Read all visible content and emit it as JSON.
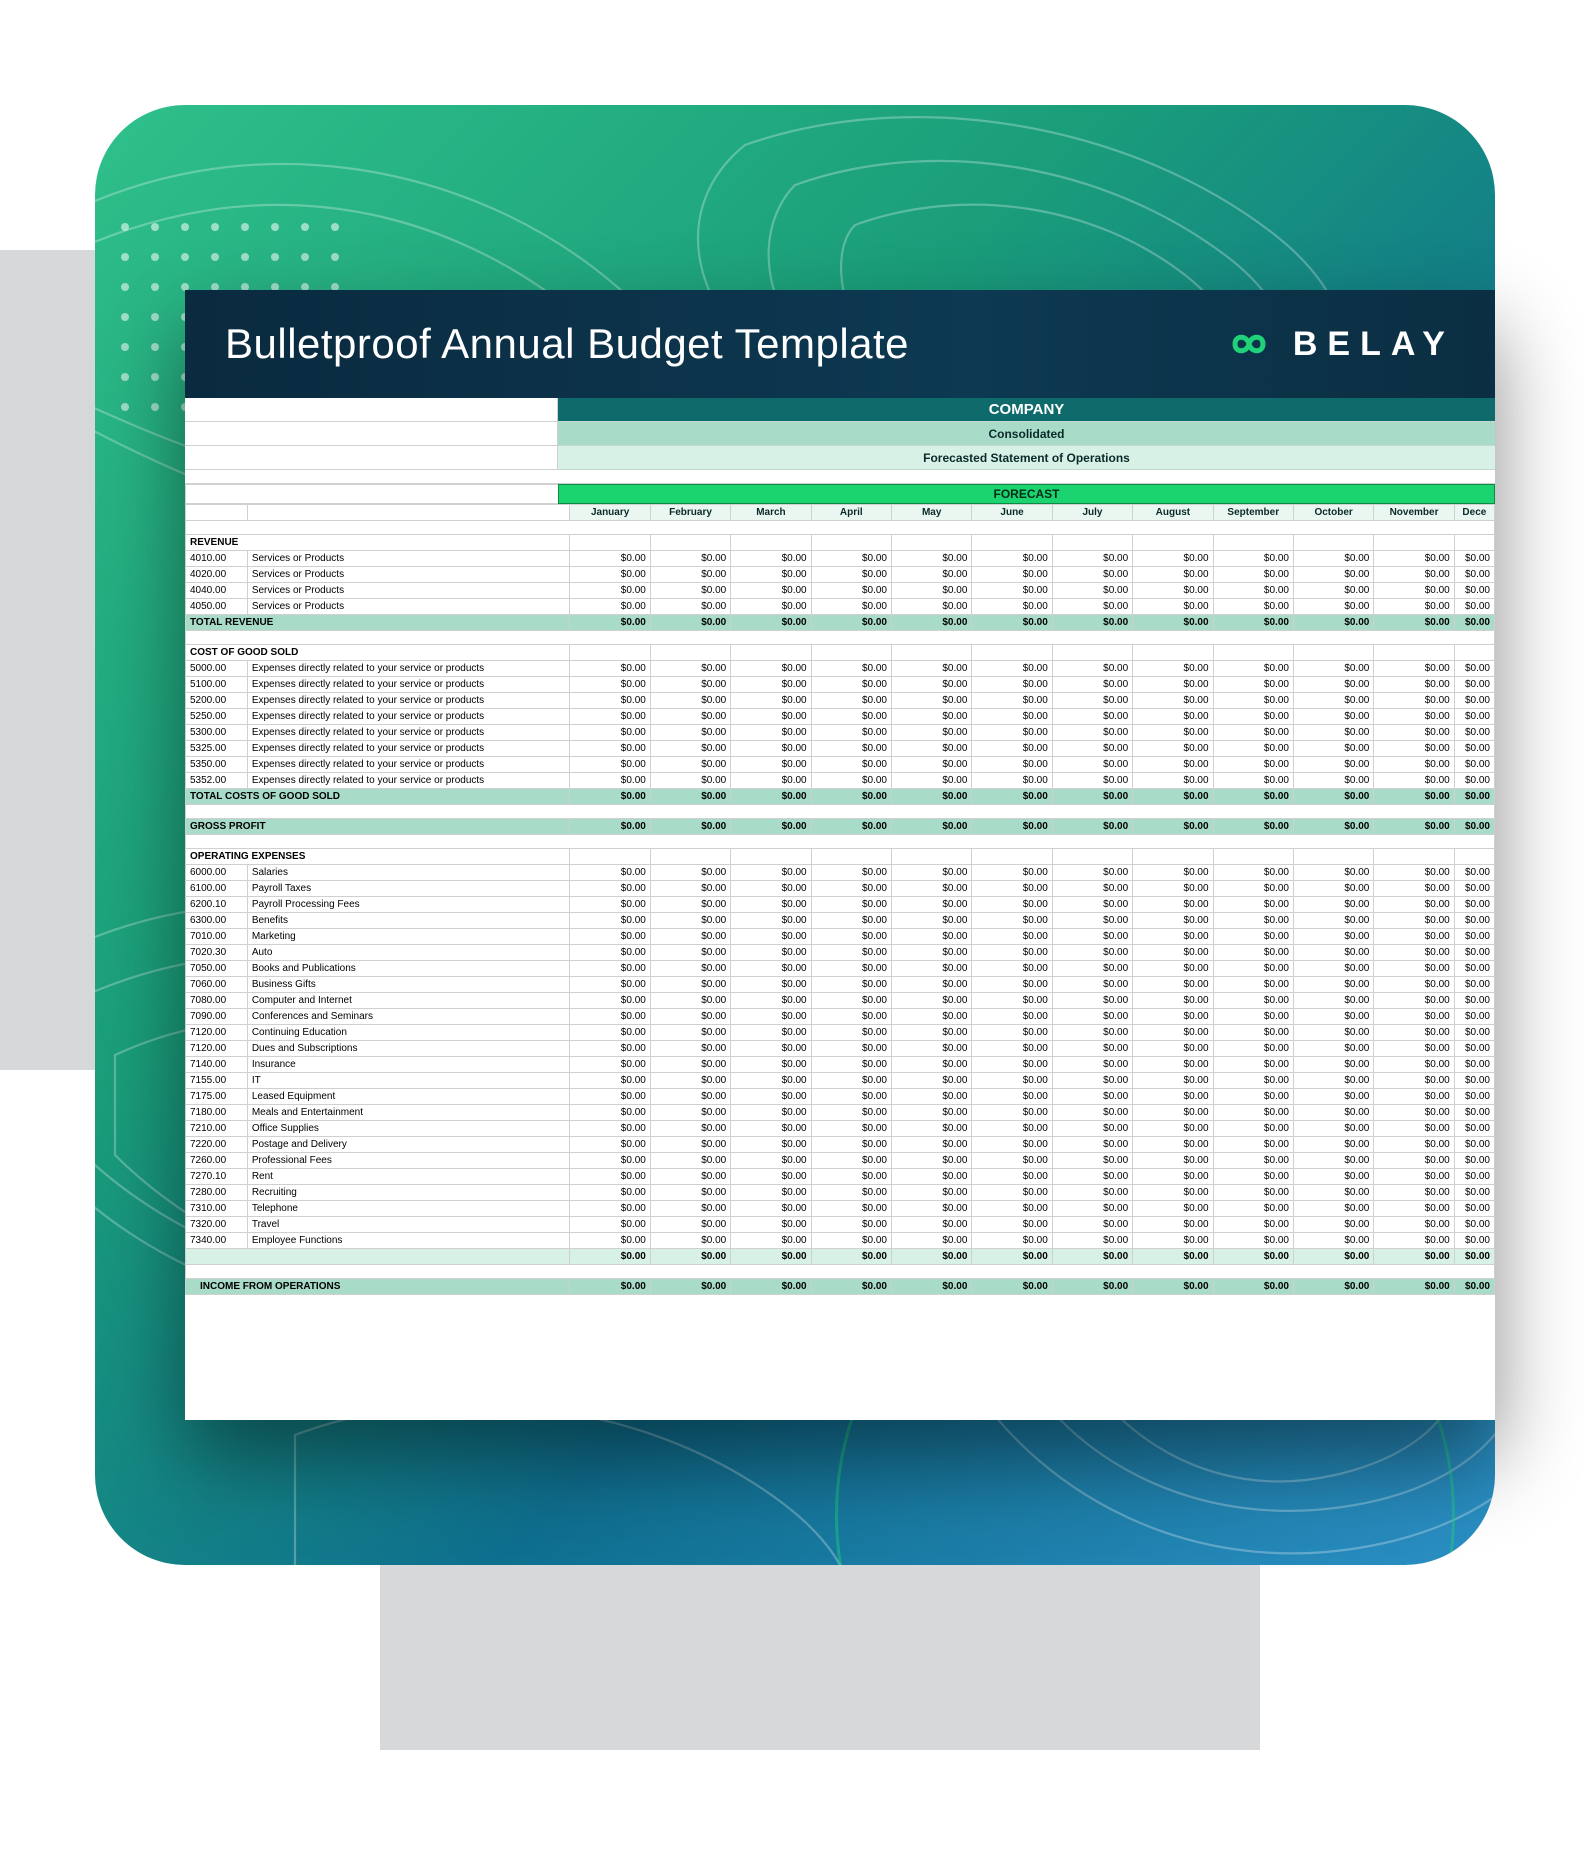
{
  "colors": {
    "title_bg_from": "#0a2a3f",
    "title_bg_to": "#0b2e42",
    "card_grad_1": "#2fc08a",
    "card_grad_2": "#1a9e7a",
    "card_grad_3": "#0f6f8f",
    "card_grad_4": "#2b8fc4",
    "forecast_bar": "#1bd36f",
    "total_green": "#a8dcc9",
    "total_light": "#d8f1e6",
    "company_name_bg": "#0f6a6c",
    "grid_border": "#d0d0d0",
    "gray_block": "#d7d8d9",
    "logo_ring": "#1fd27a"
  },
  "title": "Bulletproof Annual Budget Template",
  "brand": "BELAY",
  "header": {
    "company": "COMPANY",
    "line2": "Consolidated",
    "line3": "Forecasted Statement of Operations",
    "forecast_label": "FORECAST"
  },
  "months": [
    "January",
    "February",
    "March",
    "April",
    "May",
    "June",
    "July",
    "August",
    "September",
    "October",
    "November",
    "Dece"
  ],
  "zero": "$0.00",
  "sections": [
    {
      "name": "REVENUE",
      "rows": [
        {
          "code": "4010.00",
          "desc": "Services or Products"
        },
        {
          "code": "4020.00",
          "desc": "Services or Products"
        },
        {
          "code": "4040.00",
          "desc": "Services or Products"
        },
        {
          "code": "4050.00",
          "desc": "Services or Products"
        }
      ],
      "total_label": "TOTAL REVENUE",
      "total_style": "green"
    },
    {
      "name": "COST OF GOOD SOLD",
      "rows": [
        {
          "code": "5000.00",
          "desc": "Expenses directly related to your service or products"
        },
        {
          "code": "5100.00",
          "desc": "Expenses directly related to your service or products"
        },
        {
          "code": "5200.00",
          "desc": "Expenses directly related to your service or products"
        },
        {
          "code": "5250.00",
          "desc": "Expenses directly related to your service or products"
        },
        {
          "code": "5300.00",
          "desc": "Expenses directly related to your service or products"
        },
        {
          "code": "5325.00",
          "desc": "Expenses directly related to your service or products"
        },
        {
          "code": "5350.00",
          "desc": "Expenses directly related to your service or products"
        },
        {
          "code": "5352.00",
          "desc": "Expenses directly related to your service or products"
        }
      ],
      "total_label": "TOTAL COSTS OF GOOD SOLD",
      "total_style": "green"
    }
  ],
  "gross_profit_label": "GROSS PROFIT",
  "op_ex": {
    "name": "OPERATING EXPENSES",
    "rows": [
      {
        "code": "6000.00",
        "desc": "Salaries"
      },
      {
        "code": "6100.00",
        "desc": "Payroll Taxes"
      },
      {
        "code": "6200.10",
        "desc": "Payroll Processing Fees"
      },
      {
        "code": "6300.00",
        "desc": "Benefits"
      },
      {
        "code": "7010.00",
        "desc": "Marketing"
      },
      {
        "code": "7020.30",
        "desc": "Auto"
      },
      {
        "code": "7050.00",
        "desc": "Books and Publications"
      },
      {
        "code": "7060.00",
        "desc": "Business Gifts"
      },
      {
        "code": "7080.00",
        "desc": "Computer and Internet"
      },
      {
        "code": "7090.00",
        "desc": "Conferences and Seminars"
      },
      {
        "code": "7120.00",
        "desc": "Continuing Education"
      },
      {
        "code": "7120.00",
        "desc": "Dues and Subscriptions"
      },
      {
        "code": "7140.00",
        "desc": "Insurance"
      },
      {
        "code": "7155.00",
        "desc": "IT"
      },
      {
        "code": "7175.00",
        "desc": "Leased Equipment"
      },
      {
        "code": "7180.00",
        "desc": "Meals and Entertainment"
      },
      {
        "code": "7210.00",
        "desc": "Office Supplies"
      },
      {
        "code": "7220.00",
        "desc": "Postage and Delivery"
      },
      {
        "code": "7260.00",
        "desc": "Professional Fees"
      },
      {
        "code": "7270.10",
        "desc": "Rent"
      },
      {
        "code": "7280.00",
        "desc": "Recruiting"
      },
      {
        "code": "7310.00",
        "desc": "Telephone"
      },
      {
        "code": "7320.00",
        "desc": "Travel"
      },
      {
        "code": "7340.00",
        "desc": "Employee Functions"
      }
    ],
    "subtotal_style": "light"
  },
  "income_ops_label": "INCOME FROM OPERATIONS"
}
